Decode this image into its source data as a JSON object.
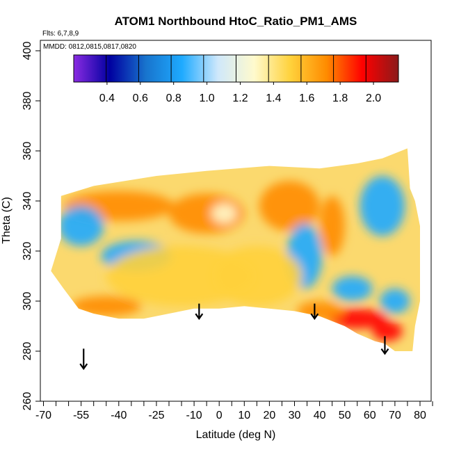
{
  "chart_data": {
    "type": "heatmap",
    "title": "ATOM1 Northbound HtoC_Ratio_PM1_AMS",
    "flights_label": "Flts: 6,7,8,9",
    "dates_label": "MMDD: 0812,0815,0817,0820",
    "xlabel": "Latitude (deg N)",
    "ylabel": "Theta (C)",
    "xlim": [
      -70,
      85
    ],
    "ylim": [
      260,
      405
    ],
    "x_ticks": [
      -70,
      -55,
      -40,
      -25,
      -10,
      0,
      10,
      20,
      30,
      40,
      50,
      60,
      70,
      80
    ],
    "x_tick_labels": [
      "-70",
      "-55",
      "-40",
      "-25",
      "-10",
      "0",
      "10",
      "20",
      "30",
      "40",
      "50",
      "60",
      "70",
      "80"
    ],
    "x_minor_ticks": [
      -65,
      -60,
      -50,
      -45,
      -35,
      -30,
      -20,
      -15,
      -5,
      5,
      15,
      25,
      35,
      45,
      55,
      65,
      75,
      85
    ],
    "y_ticks": [
      260,
      280,
      300,
      320,
      340,
      360,
      380,
      400
    ],
    "y_tick_labels": [
      "260",
      "280",
      "300",
      "320",
      "340",
      "360",
      "380",
      "400"
    ],
    "colorbar": {
      "range": [
        0.2,
        2.15
      ],
      "ticks": [
        0.4,
        0.6,
        0.8,
        1.0,
        1.2,
        1.4,
        1.6,
        1.8,
        2.0
      ],
      "tick_labels": [
        "0.4",
        "0.6",
        "0.8",
        "1.0",
        "1.2",
        "1.4",
        "1.6",
        "1.8",
        "2.0"
      ],
      "colors": [
        "#8a2be2",
        "#0000a0",
        "#1874cd",
        "#1eaaff",
        "#cfe8fb",
        "#fffacd",
        "#ffd23c",
        "#ff8c00",
        "#ff0000",
        "#8b1a1a"
      ]
    },
    "grid": false,
    "arrows": [
      {
        "x": -54,
        "y_top": 281,
        "y_bottom": 273
      },
      {
        "x": -8,
        "y_top": 299,
        "y_bottom": 293
      },
      {
        "x": 38,
        "y_top": 299,
        "y_bottom": 293
      },
      {
        "x": 66,
        "y_top": 286,
        "y_bottom": 279
      }
    ],
    "field_boundary": [
      [
        -63,
        342
      ],
      [
        -50,
        346
      ],
      [
        -25,
        350
      ],
      [
        -5,
        352
      ],
      [
        20,
        354
      ],
      [
        40,
        353
      ],
      [
        55,
        355
      ],
      [
        65,
        357
      ],
      [
        75,
        361
      ],
      [
        76,
        345
      ],
      [
        78,
        340
      ],
      [
        80,
        330
      ],
      [
        80,
        300
      ],
      [
        78,
        290
      ],
      [
        77,
        280
      ],
      [
        70,
        280
      ],
      [
        66,
        283
      ],
      [
        62,
        284
      ],
      [
        55,
        287
      ],
      [
        50,
        290
      ],
      [
        40,
        294
      ],
      [
        30,
        296
      ],
      [
        20,
        297
      ],
      [
        10,
        298
      ],
      [
        0,
        297
      ],
      [
        -10,
        297
      ],
      [
        -20,
        295
      ],
      [
        -30,
        293
      ],
      [
        -40,
        293
      ],
      [
        -50,
        295
      ],
      [
        -56,
        297
      ],
      [
        -62,
        305
      ],
      [
        -67,
        312
      ],
      [
        -63,
        325
      ]
    ],
    "field_patches": [
      {
        "x": -40,
        "y": 338,
        "rx": 22,
        "ry": 6,
        "value": 1.75
      },
      {
        "x": -5,
        "y": 335,
        "rx": 15,
        "ry": 8,
        "value": 1.75
      },
      {
        "x": 28,
        "y": 338,
        "rx": 12,
        "ry": 10,
        "value": 1.7
      },
      {
        "x": 45,
        "y": 330,
        "rx": 5,
        "ry": 12,
        "value": 1.75
      },
      {
        "x": -55,
        "y": 330,
        "rx": 9,
        "ry": 8,
        "value": 0.9
      },
      {
        "x": -33,
        "y": 318,
        "rx": 14,
        "ry": 6,
        "value": 0.95
      },
      {
        "x": 65,
        "y": 338,
        "rx": 9,
        "ry": 12,
        "value": 0.85
      },
      {
        "x": 34,
        "y": 318,
        "rx": 7,
        "ry": 13,
        "value": 0.95
      },
      {
        "x": 53,
        "y": 305,
        "rx": 8,
        "ry": 5,
        "value": 0.9
      },
      {
        "x": 2,
        "y": 335,
        "rx": 5,
        "ry": 4,
        "value": 1.3
      },
      {
        "x": -15,
        "y": 310,
        "rx": 30,
        "ry": 12,
        "value": 1.5
      },
      {
        "x": 15,
        "y": 310,
        "rx": 18,
        "ry": 12,
        "value": 1.45
      },
      {
        "x": -45,
        "y": 298,
        "rx": 14,
        "ry": 4,
        "value": 1.7
      },
      {
        "x": 55,
        "y": 293,
        "rx": 12,
        "ry": 4,
        "value": 1.8
      },
      {
        "x": 67,
        "y": 288,
        "rx": 6,
        "ry": 4,
        "value": 1.85
      },
      {
        "x": 70,
        "y": 300,
        "rx": 6,
        "ry": 5,
        "value": 0.9
      },
      {
        "x": 40,
        "y": 296,
        "rx": 9,
        "ry": 4,
        "value": 1.75
      }
    ]
  }
}
